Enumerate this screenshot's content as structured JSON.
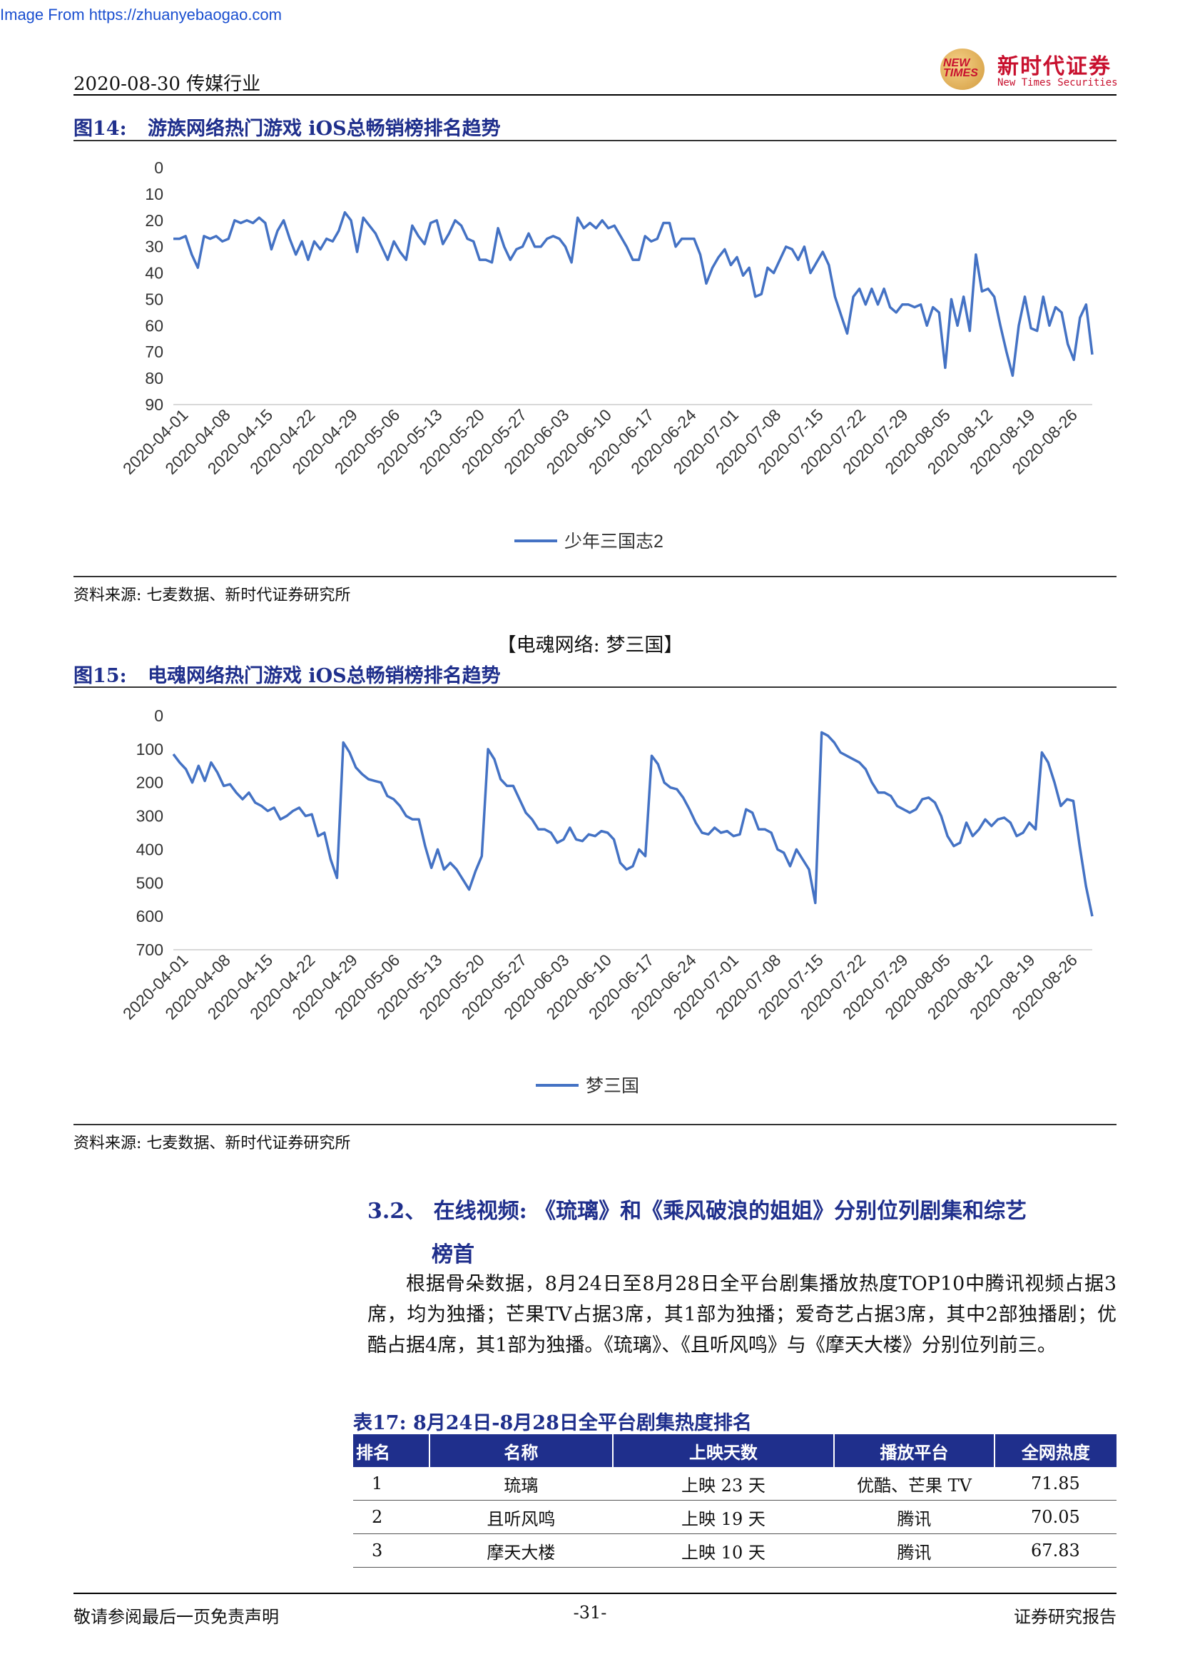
{
  "watermark": "Image From https://zhuanyebaogao.com",
  "header": {
    "left": "2020-08-30 传媒行业",
    "logo_cn": "新时代证券",
    "logo_en": "New Times Securities",
    "logo_mark_top": "NEW",
    "logo_mark_bottom": "TIMES"
  },
  "fig14": {
    "num": "图14:",
    "title": "游族网络热门游戏 iOS总畅销榜排名趋势",
    "source": "资料来源: 七麦数据、新时代证券研究所"
  },
  "subheading": "【电魂网络: 梦三国】",
  "fig15": {
    "num": "图15:",
    "title": "电魂网络热门游戏 iOS总畅销榜排名趋势",
    "source": "资料来源: 七麦数据、新时代证券研究所"
  },
  "section": {
    "title_line1": "3.2、 在线视频: 《琉璃》和《乘风破浪的姐姐》分别位列剧集和综艺",
    "title_line2": "榜首"
  },
  "paragraph": "根据骨朵数据，8月24日至8月28日全平台剧集播放热度TOP10中腾讯视频占据3席，均为独播；芒果TV占据3席，其1部为独播；爱奇艺占据3席，其中2部独播剧；优酷占据4席，其1部为独播。《琉璃》、《且听风鸣》与《摩天大楼》分别位列前三。",
  "table": {
    "title": "表17:  8月24日-8月28日全平台剧集热度排名",
    "headers": [
      "排名",
      "名称",
      "上映天数",
      "播放平台",
      "全网热度"
    ],
    "rows": [
      [
        "1",
        "琉璃",
        "上映 23 天",
        "优酷、芒果 TV",
        "71.85"
      ],
      [
        "2",
        "且听风鸣",
        "上映 19 天",
        "腾讯",
        "70.05"
      ],
      [
        "3",
        "摩天大楼",
        "上映 10 天",
        "腾讯",
        "67.83"
      ]
    ]
  },
  "footer": {
    "left": "敬请参阅最后一页免责声明",
    "center": "-31-",
    "right": "证券研究报告"
  },
  "chart_data": [
    {
      "type": "line",
      "y_inverted": true,
      "ylim": [
        0,
        90
      ],
      "yticks": [
        0,
        10,
        20,
        30,
        40,
        50,
        60,
        70,
        80,
        90
      ],
      "x_tick_labels": [
        "2020-04-01",
        "2020-04-08",
        "2020-04-15",
        "2020-04-22",
        "2020-04-29",
        "2020-05-06",
        "2020-05-13",
        "2020-05-20",
        "2020-05-27",
        "2020-06-03",
        "2020-06-10",
        "2020-06-17",
        "2020-06-24",
        "2020-07-01",
        "2020-07-08",
        "2020-07-15",
        "2020-07-22",
        "2020-07-29",
        "2020-08-05",
        "2020-08-12",
        "2020-08-19",
        "2020-08-26"
      ],
      "color": "#4472c4",
      "legend_position": "bottom",
      "series": [
        {
          "name": "少年三国志2",
          "values": [
            27,
            27,
            26,
            33,
            38,
            26,
            27,
            26,
            28,
            27,
            20,
            21,
            20,
            21,
            19,
            21,
            31,
            24,
            20,
            27,
            33,
            28,
            35,
            28,
            31,
            27,
            28,
            24,
            17,
            20,
            32,
            19,
            22,
            25,
            30,
            35,
            28,
            32,
            35,
            22,
            26,
            29,
            21,
            20,
            29,
            25,
            20,
            22,
            27,
            28,
            35,
            35,
            36,
            23,
            30,
            35,
            31,
            30,
            25,
            30,
            30,
            27,
            26,
            27,
            30,
            36,
            19,
            23,
            21,
            23,
            20,
            23,
            22,
            26,
            30,
            35,
            35,
            26,
            28,
            27,
            21,
            21,
            30,
            27,
            27,
            27,
            33,
            44,
            38,
            34,
            31,
            37,
            34,
            41,
            38,
            49,
            48,
            38,
            40,
            35,
            30,
            31,
            35,
            30,
            40,
            36,
            32,
            37,
            49,
            56,
            63,
            49,
            46,
            52,
            46,
            52,
            46,
            53,
            55,
            52,
            52,
            53,
            52,
            60,
            53,
            55,
            76,
            50,
            60,
            49,
            62,
            33,
            47,
            46,
            49,
            60,
            70,
            79,
            60,
            49,
            61,
            62,
            49,
            60,
            53,
            55,
            67,
            73,
            57,
            52,
            71
          ]
        }
      ]
    },
    {
      "type": "line",
      "y_inverted": true,
      "ylim": [
        0,
        700
      ],
      "yticks": [
        0,
        100,
        200,
        300,
        400,
        500,
        600,
        700
      ],
      "x_tick_labels": [
        "2020-04-01",
        "2020-04-08",
        "2020-04-15",
        "2020-04-22",
        "2020-04-29",
        "2020-05-06",
        "2020-05-13",
        "2020-05-20",
        "2020-05-27",
        "2020-06-03",
        "2020-06-10",
        "2020-06-17",
        "2020-06-24",
        "2020-07-01",
        "2020-07-08",
        "2020-07-15",
        "2020-07-22",
        "2020-07-29",
        "2020-08-05",
        "2020-08-12",
        "2020-08-19",
        "2020-08-26"
      ],
      "color": "#4472c4",
      "legend_position": "bottom",
      "series": [
        {
          "name": "梦三国",
          "values": [
            115,
            140,
            160,
            200,
            150,
            195,
            140,
            170,
            210,
            205,
            230,
            250,
            230,
            260,
            270,
            285,
            275,
            310,
            300,
            285,
            275,
            300,
            295,
            360,
            350,
            430,
            485,
            80,
            110,
            155,
            175,
            190,
            195,
            200,
            240,
            250,
            270,
            300,
            310,
            310,
            390,
            455,
            400,
            460,
            440,
            460,
            490,
            520,
            465,
            420,
            100,
            130,
            190,
            210,
            210,
            250,
            290,
            310,
            340,
            340,
            350,
            380,
            370,
            335,
            370,
            375,
            355,
            360,
            345,
            350,
            370,
            440,
            460,
            450,
            400,
            420,
            120,
            145,
            200,
            215,
            220,
            245,
            280,
            320,
            350,
            355,
            335,
            350,
            345,
            360,
            355,
            280,
            290,
            340,
            340,
            350,
            400,
            410,
            450,
            400,
            430,
            460,
            560,
            50,
            60,
            80,
            110,
            120,
            130,
            140,
            160,
            200,
            230,
            230,
            240,
            270,
            280,
            290,
            280,
            250,
            245,
            260,
            300,
            360,
            390,
            380,
            320,
            360,
            340,
            310,
            330,
            310,
            305,
            320,
            360,
            350,
            320,
            340,
            110,
            140,
            200,
            270,
            250,
            255,
            390,
            510,
            600
          ]
        }
      ]
    }
  ]
}
